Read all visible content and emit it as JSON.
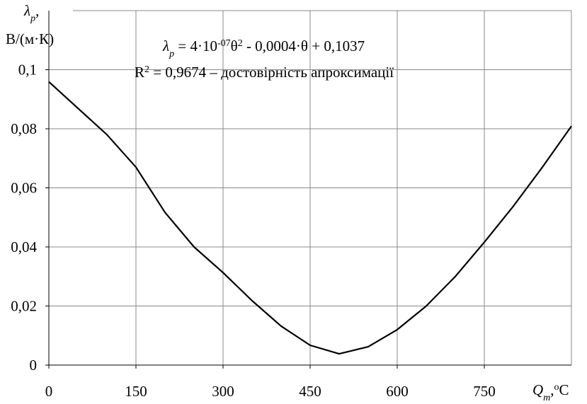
{
  "chart_data": {
    "type": "line",
    "y_label": [
      {
        "text": "λ",
        "italic": true
      },
      {
        "text": "p",
        "sub": true,
        "italic": true
      },
      {
        "text": ","
      }
    ],
    "y_unit": "В/(м·К)",
    "x_label": [
      {
        "text": "Q",
        "italic": true
      },
      {
        "text": "m",
        "sub": true,
        "italic": true
      },
      {
        "text": ","
      },
      {
        "text": "o",
        "sup": true
      },
      {
        "text": "C"
      }
    ],
    "equation": [
      {
        "text": "λ",
        "italic": true
      },
      {
        "text": "p",
        "sub": true,
        "italic": true
      },
      {
        "text": " = 4·10"
      },
      {
        "text": "-07",
        "sup": true
      },
      {
        "text": "θ"
      },
      {
        "text": "2",
        "sup": true
      },
      {
        "text": " - 0,0004·θ + 0,1037"
      }
    ],
    "r2_text": [
      {
        "text": "R"
      },
      {
        "text": "2",
        "sup": true
      },
      {
        "text": " = 0,9674 – достовірність апроксимації"
      }
    ],
    "x": [
      0,
      100,
      150,
      200,
      250,
      300,
      350,
      400,
      450,
      500,
      550,
      600,
      650,
      700,
      750,
      800,
      850,
      900
    ],
    "series": [
      {
        "color": "#000000",
        "values": [
          0.0959,
          0.078,
          0.067,
          0.0517,
          0.04,
          0.0313,
          0.0218,
          0.0132,
          0.0067,
          0.0038,
          0.0062,
          0.012,
          0.02,
          0.03,
          0.0416,
          0.0538,
          0.067,
          0.0809
        ]
      }
    ],
    "xlim": [
      0,
      900
    ],
    "xticks": [
      0,
      150,
      300,
      450,
      600,
      750
    ],
    "ylim": [
      0,
      0.12
    ],
    "yticks": [
      0,
      {
        "value": 0.02,
        "label": "0,02"
      },
      {
        "value": 0.04,
        "label": "0,04"
      },
      {
        "value": 0.06,
        "label": "0,06"
      },
      {
        "value": 0.08,
        "label": "0,08"
      },
      {
        "value": 0.1,
        "label": "0,1"
      }
    ],
    "grid": true
  }
}
